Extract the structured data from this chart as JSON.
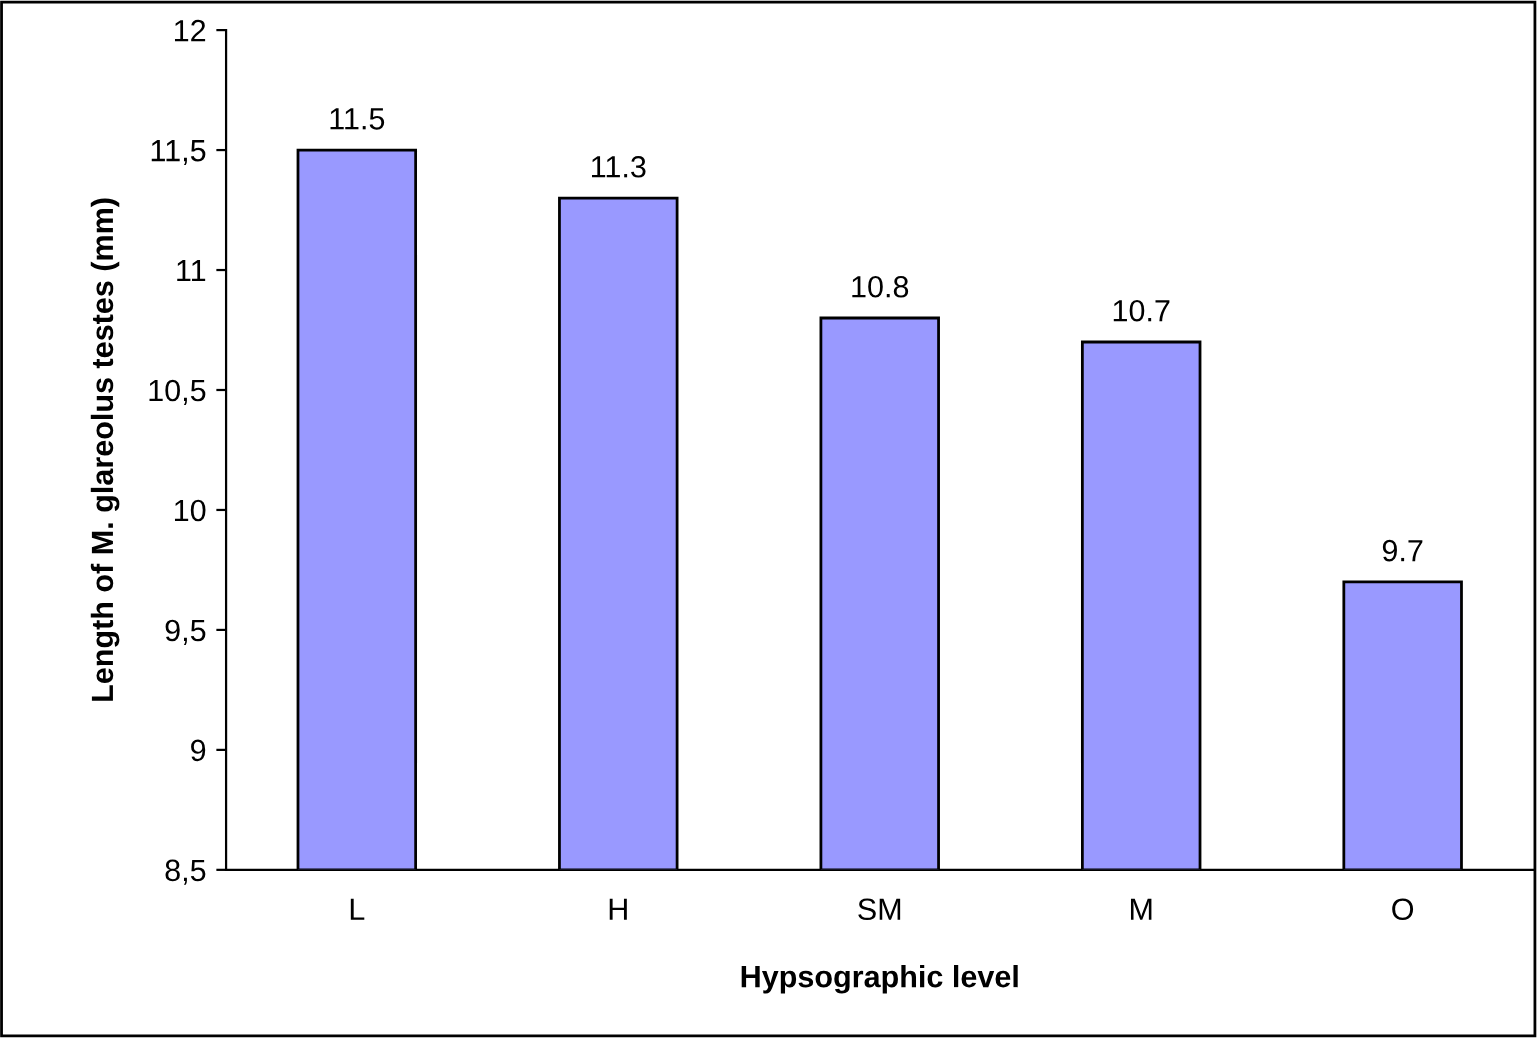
{
  "chart_data": {
    "type": "bar",
    "xlabel": "Hypsographic level",
    "ylabel": "Length of M. glareolus testes (mm)",
    "categories": [
      "L",
      "H",
      "SM",
      "M",
      "O"
    ],
    "values": [
      11.5,
      11.3,
      10.8,
      10.7,
      9.7
    ],
    "color": "#9999ff",
    "ylim": [
      8.5,
      12
    ],
    "yticks": [
      {
        "value": 8.5,
        "label": "8,5"
      },
      9,
      {
        "value": 9.5,
        "label": "9,5"
      },
      10,
      {
        "value": 10.5,
        "label": "10,5"
      },
      11,
      {
        "value": 11.5,
        "label": "11,5"
      },
      12
    ],
    "data_labels": true,
    "grid": false,
    "legend": false
  }
}
